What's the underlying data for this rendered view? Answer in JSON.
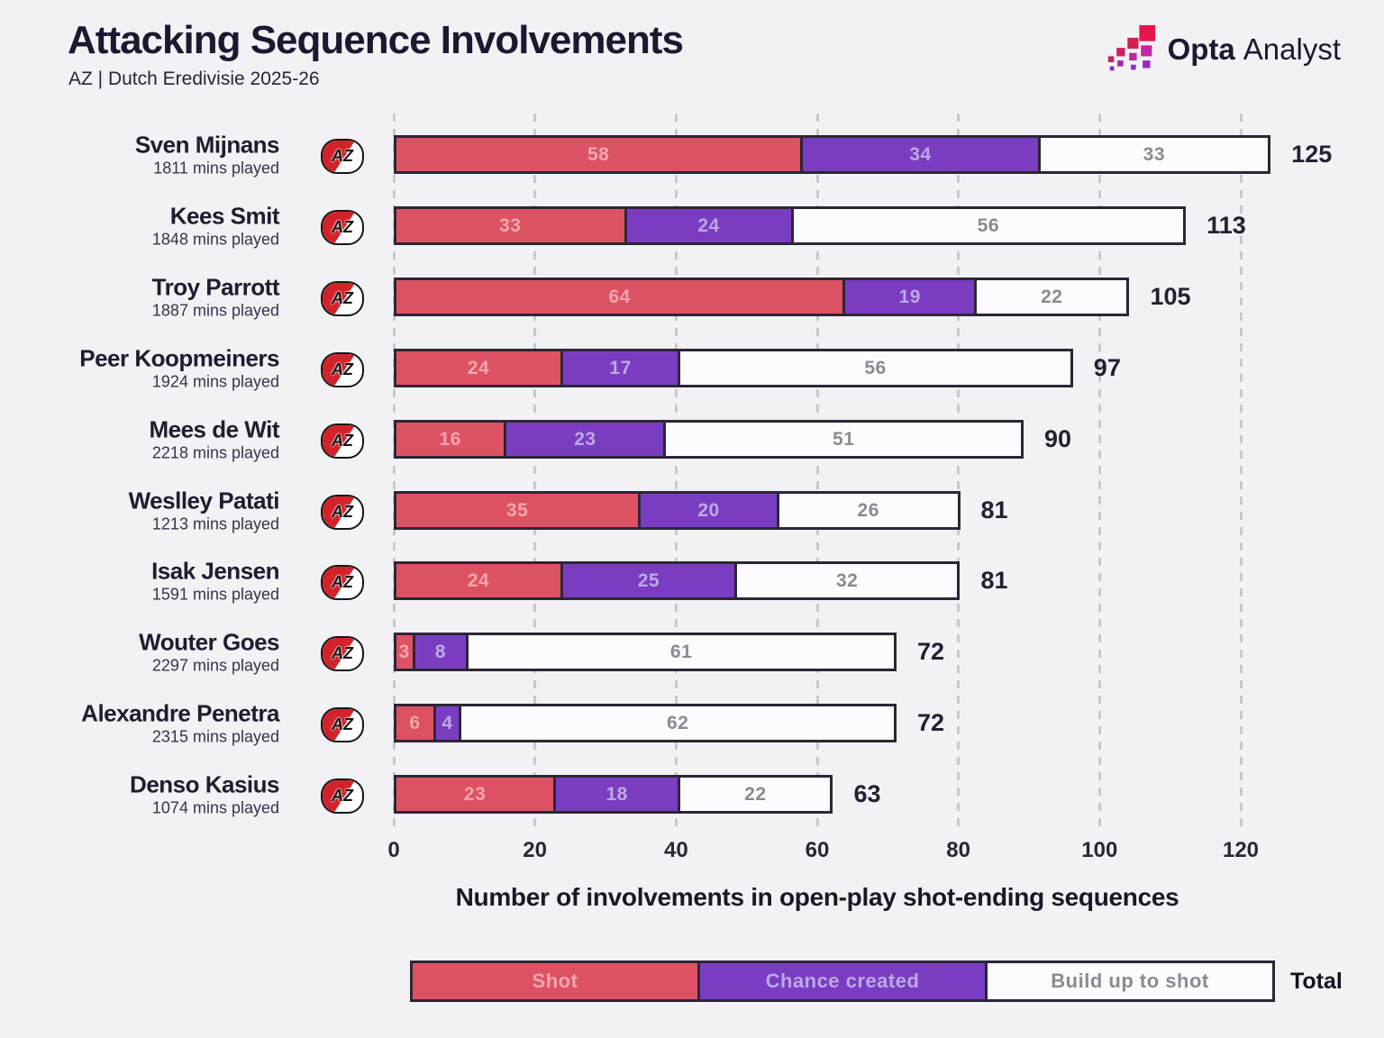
{
  "header": {
    "title": "Attacking Sequence Involvements",
    "subtitle": "AZ | Dutch Eredivisie 2025-26"
  },
  "brand": {
    "logo_icon": "opta-stair-squares-logo",
    "name_bold": "Opta",
    "name_light": "Analyst"
  },
  "chart_data": {
    "type": "bar",
    "orientation": "horizontal",
    "stacked": true,
    "title": "Attacking Sequence Involvements",
    "subtitle": "AZ | Dutch Eredivisie 2025-26",
    "xlabel": "Number of involvements in open-play shot-ending sequences",
    "x_ticks": [
      0,
      20,
      40,
      60,
      80,
      100,
      120
    ],
    "xlim": [
      0,
      130
    ],
    "grid": "dashed-vertical",
    "legend_position": "bottom",
    "badge_text": "AZ",
    "series_names": [
      "Shot",
      "Chance created",
      "Build up to shot"
    ],
    "colors": {
      "shot": "#dd5263",
      "chance_created": "#7a3dc1",
      "build_up_to_shot": "#fcfbfd",
      "outline": "#2c2636",
      "background": "#f2f1f4",
      "badge_red": "#d2232a"
    },
    "players": [
      {
        "name": "Sven Mijnans",
        "mins_played": "1811 mins played",
        "shot": 58,
        "chance_created": 34,
        "build_up_to_shot": 33,
        "total": 125
      },
      {
        "name": "Kees Smit",
        "mins_played": "1848 mins played",
        "shot": 33,
        "chance_created": 24,
        "build_up_to_shot": 56,
        "total": 113
      },
      {
        "name": "Troy Parrott",
        "mins_played": "1887 mins played",
        "shot": 64,
        "chance_created": 19,
        "build_up_to_shot": 22,
        "total": 105
      },
      {
        "name": "Peer Koopmeiners",
        "mins_played": "1924 mins played",
        "shot": 24,
        "chance_created": 17,
        "build_up_to_shot": 56,
        "total": 97
      },
      {
        "name": "Mees de Wit",
        "mins_played": "2218 mins played",
        "shot": 16,
        "chance_created": 23,
        "build_up_to_shot": 51,
        "total": 90
      },
      {
        "name": "Weslley Patati",
        "mins_played": "1213 mins played",
        "shot": 35,
        "chance_created": 20,
        "build_up_to_shot": 26,
        "total": 81
      },
      {
        "name": "Isak Jensen",
        "mins_played": "1591 mins played",
        "shot": 24,
        "chance_created": 25,
        "build_up_to_shot": 32,
        "total": 81
      },
      {
        "name": "Wouter Goes",
        "mins_played": "2297 mins played",
        "shot": 3,
        "chance_created": 8,
        "build_up_to_shot": 61,
        "total": 72
      },
      {
        "name": "Alexandre Penetra",
        "mins_played": "2315 mins played",
        "shot": 6,
        "chance_created": 4,
        "build_up_to_shot": 62,
        "total": 72
      },
      {
        "name": "Denso Kasius",
        "mins_played": "1074 mins played",
        "shot": 23,
        "chance_created": 18,
        "build_up_to_shot": 22,
        "total": 63
      }
    ],
    "legend": {
      "items": [
        "Shot",
        "Chance created",
        "Build up to shot"
      ],
      "total_label": "Total"
    }
  }
}
